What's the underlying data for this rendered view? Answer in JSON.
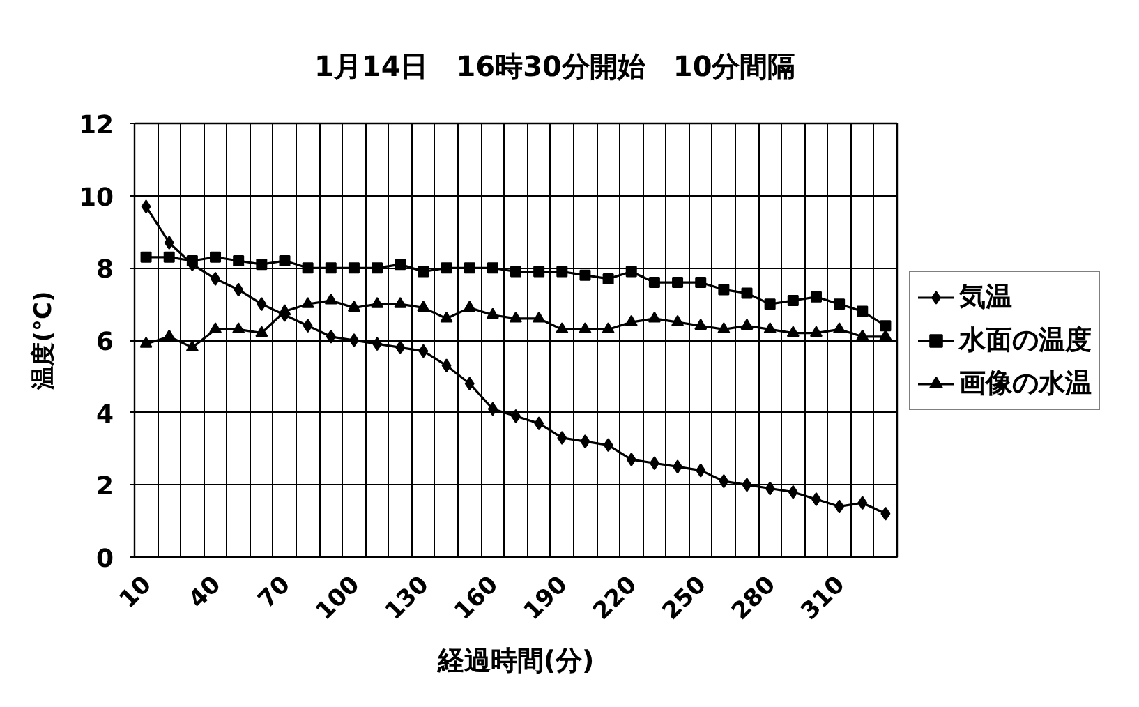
{
  "chart_data": {
    "type": "line",
    "title": "1月14日　16時30分開始　10分間隔",
    "xlabel": "経過時間(分)",
    "ylabel": "温度(°C)",
    "categories": [
      "10",
      null,
      null,
      "40",
      null,
      null,
      "70",
      null,
      null,
      "100",
      null,
      null,
      "130",
      null,
      null,
      "160",
      null,
      null,
      "190",
      null,
      null,
      "220",
      null,
      null,
      "250",
      null,
      null,
      "280",
      null,
      null,
      "310",
      null,
      null
    ],
    "ylim": [
      0,
      12
    ],
    "yticks": [
      0,
      2,
      4,
      6,
      8,
      10,
      12
    ],
    "grid": true,
    "legend": "right",
    "line_style": "solid",
    "series": [
      {
        "name": "気温",
        "color": "#000000",
        "marker": "diamond",
        "values": [
          9.7,
          8.7,
          8.1,
          7.7,
          7.4,
          7.0,
          6.7,
          6.4,
          6.1,
          6.0,
          5.9,
          5.8,
          5.7,
          5.3,
          4.8,
          4.1,
          3.9,
          3.7,
          3.3,
          3.2,
          3.1,
          2.7,
          2.6,
          2.5,
          2.4,
          2.1,
          2.0,
          1.9,
          1.8,
          1.6,
          1.4,
          1.5,
          1.2
        ]
      },
      {
        "name": "水面の温度",
        "color": "#000000",
        "marker": "square",
        "values": [
          8.3,
          8.3,
          8.2,
          8.3,
          8.2,
          8.1,
          8.2,
          8.0,
          8.0,
          8.0,
          8.0,
          8.1,
          7.9,
          8.0,
          8.0,
          8.0,
          7.9,
          7.9,
          7.9,
          7.8,
          7.7,
          7.9,
          7.6,
          7.6,
          7.6,
          7.4,
          7.3,
          7.0,
          7.1,
          7.2,
          7.0,
          6.8,
          6.4
        ]
      },
      {
        "name": "画像の水温",
        "color": "#000000",
        "marker": "triangle",
        "values": [
          5.9,
          6.1,
          5.8,
          6.3,
          6.3,
          6.2,
          6.8,
          7.0,
          7.1,
          6.9,
          7.0,
          7.0,
          6.9,
          6.6,
          6.9,
          6.7,
          6.6,
          6.6,
          6.3,
          6.3,
          6.3,
          6.5,
          6.6,
          6.5,
          6.4,
          6.3,
          6.4,
          6.3,
          6.2,
          6.2,
          6.3,
          6.1,
          6.1
        ]
      }
    ]
  }
}
